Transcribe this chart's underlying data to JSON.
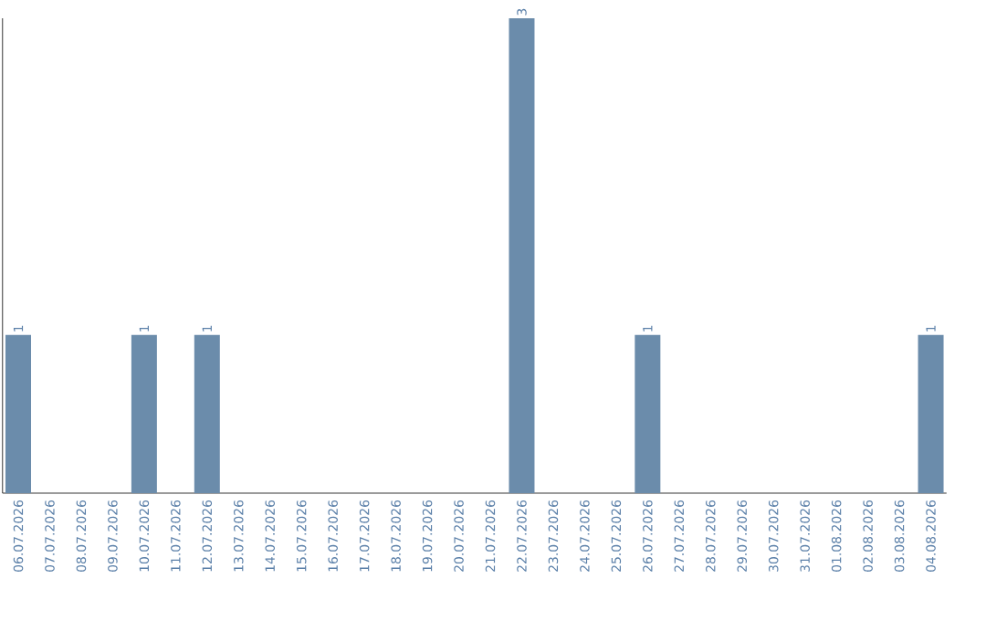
{
  "chart_data": {
    "type": "bar",
    "categories": [
      "06.07.2026",
      "07.07.2026",
      "08.07.2026",
      "09.07.2026",
      "10.07.2026",
      "11.07.2026",
      "12.07.2026",
      "13.07.2026",
      "14.07.2026",
      "15.07.2026",
      "16.07.2026",
      "17.07.2026",
      "18.07.2026",
      "19.07.2026",
      "20.07.2026",
      "21.07.2026",
      "22.07.2026",
      "23.07.2026",
      "24.07.2026",
      "25.07.2026",
      "26.07.2026",
      "27.07.2026",
      "28.07.2026",
      "29.07.2026",
      "30.07.2026",
      "31.07.2026",
      "01.08.2026",
      "02.08.2026",
      "03.08.2026",
      "04.08.2026"
    ],
    "values": [
      1,
      0,
      0,
      0,
      1,
      0,
      1,
      0,
      0,
      0,
      0,
      0,
      0,
      0,
      0,
      0,
      3,
      0,
      0,
      0,
      1,
      0,
      0,
      0,
      0,
      0,
      0,
      0,
      0,
      1
    ],
    "value_labels": [
      "1",
      null,
      null,
      null,
      "1",
      null,
      "1",
      null,
      null,
      null,
      null,
      null,
      null,
      null,
      null,
      null,
      "3",
      null,
      null,
      null,
      "1",
      null,
      null,
      null,
      null,
      null,
      null,
      null,
      null,
      "1"
    ],
    "color": "#6b8cab"
  }
}
